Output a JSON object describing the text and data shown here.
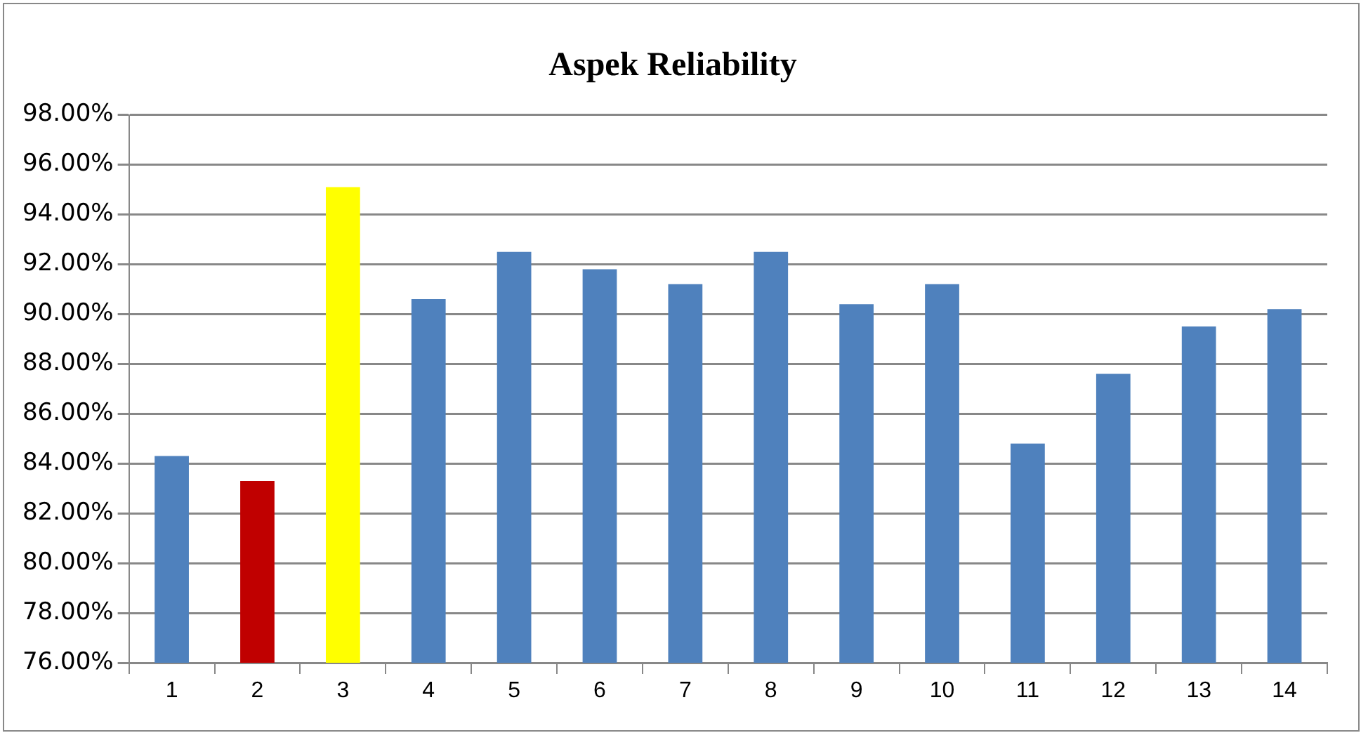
{
  "chart_data": {
    "type": "bar",
    "title": "Aspek Reliability",
    "categories": [
      "1",
      "2",
      "3",
      "4",
      "5",
      "6",
      "7",
      "8",
      "9",
      "10",
      "11",
      "12",
      "13",
      "14"
    ],
    "values": [
      84.3,
      83.3,
      95.1,
      90.6,
      92.5,
      91.8,
      91.2,
      92.5,
      90.4,
      91.2,
      84.8,
      87.6,
      89.5,
      90.2
    ],
    "colors": [
      "#4f81bd",
      "#c00000",
      "#ffff00",
      "#4f81bd",
      "#4f81bd",
      "#4f81bd",
      "#4f81bd",
      "#4f81bd",
      "#4f81bd",
      "#4f81bd",
      "#4f81bd",
      "#4f81bd",
      "#4f81bd",
      "#4f81bd"
    ],
    "ylim": [
      76,
      98
    ],
    "yticks": [
      {
        "value": 76,
        "label": "76.00%"
      },
      {
        "value": 78,
        "label": "78.00%"
      },
      {
        "value": 80,
        "label": "80.00%"
      },
      {
        "value": 82,
        "label": "82.00%"
      },
      {
        "value": 84,
        "label": "84.00%"
      },
      {
        "value": 86,
        "label": "86.00%"
      },
      {
        "value": 88,
        "label": "88.00%"
      },
      {
        "value": 90,
        "label": "90.00%"
      },
      {
        "value": 92,
        "label": "92.00%"
      },
      {
        "value": 94,
        "label": "94.00%"
      },
      {
        "value": 96,
        "label": "96.00%"
      },
      {
        "value": 98,
        "label": "98.00%"
      }
    ],
    "grid": "y",
    "legend": false
  }
}
